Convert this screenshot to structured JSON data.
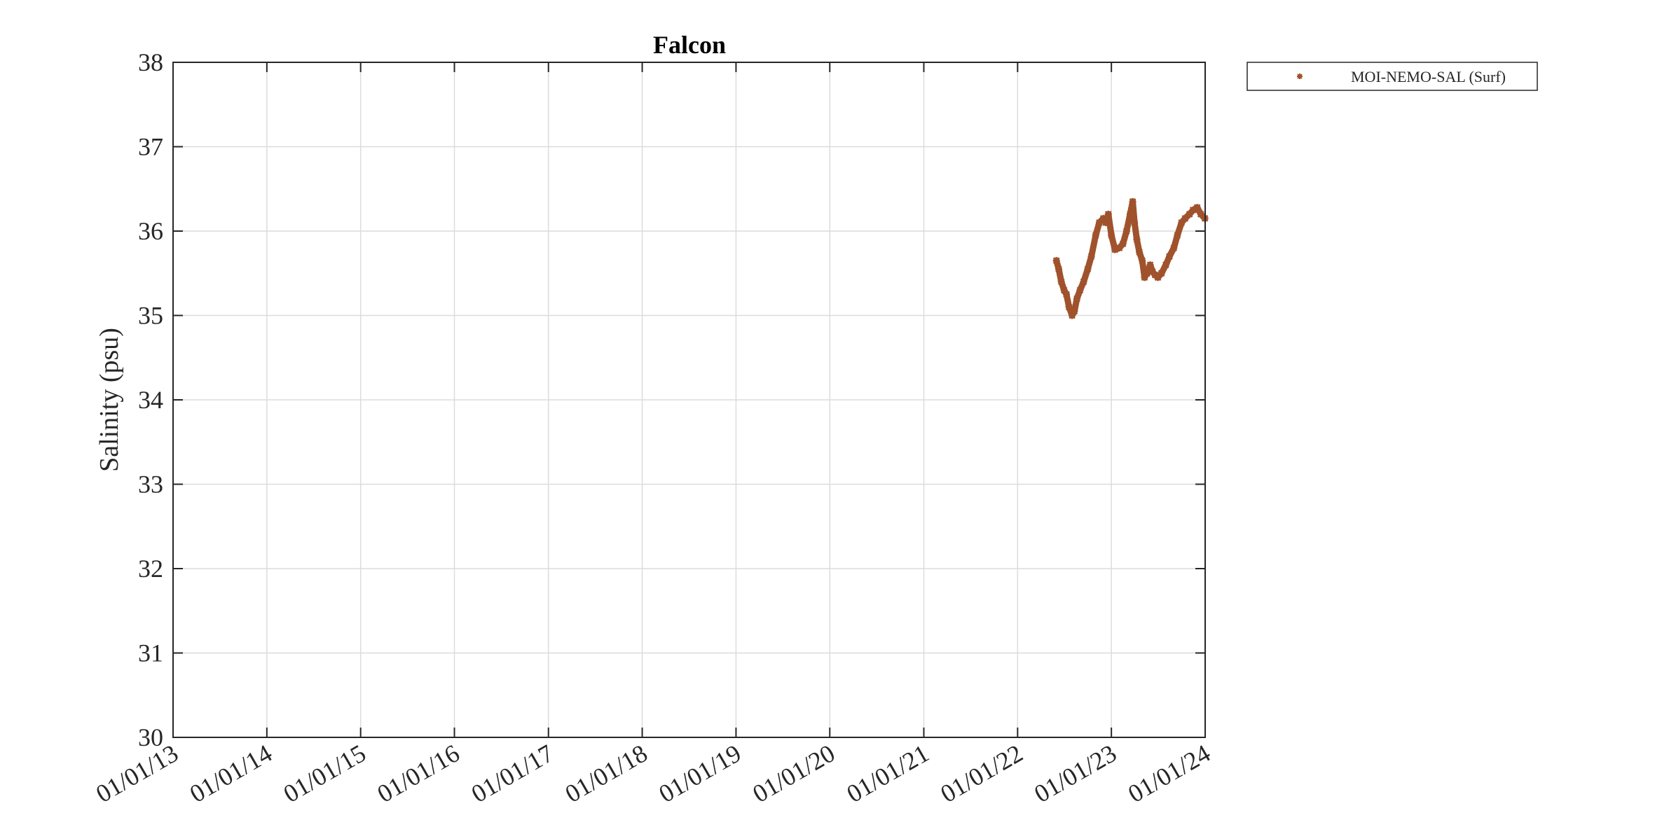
{
  "chart_data": {
    "type": "scatter",
    "title": "Falcon",
    "xlabel": "",
    "ylabel": "Salinity (psu)",
    "ylim": [
      30,
      38
    ],
    "yticks": [
      30,
      31,
      32,
      33,
      34,
      35,
      36,
      37,
      38
    ],
    "xlim": [
      "2013-01-01",
      "2024-01-01"
    ],
    "xticks": [
      "2013-01-01",
      "2014-01-01",
      "2015-01-01",
      "2016-01-01",
      "2017-01-01",
      "2018-01-01",
      "2019-01-01",
      "2020-01-01",
      "2021-01-01",
      "2022-01-01",
      "2023-01-01",
      "2024-01-01"
    ],
    "xtick_labels": [
      "01/01/13",
      "01/01/14",
      "01/01/15",
      "01/01/16",
      "01/01/17",
      "01/01/18",
      "01/01/19",
      "01/01/20",
      "01/01/21",
      "01/01/22",
      "01/01/23",
      "01/01/24"
    ],
    "grid": true,
    "legend_position": "outside top-right",
    "series": [
      {
        "name": "MOI-NEMO-SAL (Surf)",
        "color": "#a0522d",
        "marker": "asterisk",
        "x": [
          "2022-06-01",
          "2022-06-10",
          "2022-06-20",
          "2022-07-01",
          "2022-07-10",
          "2022-07-20",
          "2022-08-01",
          "2022-08-10",
          "2022-08-20",
          "2022-09-01",
          "2022-09-15",
          "2022-10-01",
          "2022-10-15",
          "2022-11-01",
          "2022-11-15",
          "2022-12-01",
          "2022-12-10",
          "2022-12-20",
          "2023-01-01",
          "2023-01-15",
          "2023-02-01",
          "2023-02-15",
          "2023-03-01",
          "2023-03-15",
          "2023-03-25",
          "2023-04-01",
          "2023-04-10",
          "2023-04-20",
          "2023-05-01",
          "2023-05-10",
          "2023-05-20",
          "2023-06-01",
          "2023-06-10",
          "2023-06-20",
          "2023-07-01",
          "2023-07-15",
          "2023-08-01",
          "2023-08-15",
          "2023-09-01",
          "2023-09-15",
          "2023-10-01",
          "2023-10-15",
          "2023-11-01",
          "2023-11-15",
          "2023-12-01",
          "2023-12-15",
          "2023-12-31"
        ],
        "y": [
          35.65,
          35.55,
          35.4,
          35.3,
          35.25,
          35.1,
          35.0,
          35.05,
          35.2,
          35.3,
          35.4,
          35.55,
          35.7,
          35.95,
          36.1,
          36.15,
          36.1,
          36.2,
          35.95,
          35.78,
          35.8,
          35.85,
          36.0,
          36.2,
          36.35,
          36.1,
          35.9,
          35.75,
          35.65,
          35.45,
          35.5,
          35.6,
          35.52,
          35.48,
          35.45,
          35.5,
          35.6,
          35.7,
          35.8,
          35.95,
          36.1,
          36.15,
          36.2,
          36.25,
          36.28,
          36.2,
          36.15
        ]
      }
    ]
  }
}
